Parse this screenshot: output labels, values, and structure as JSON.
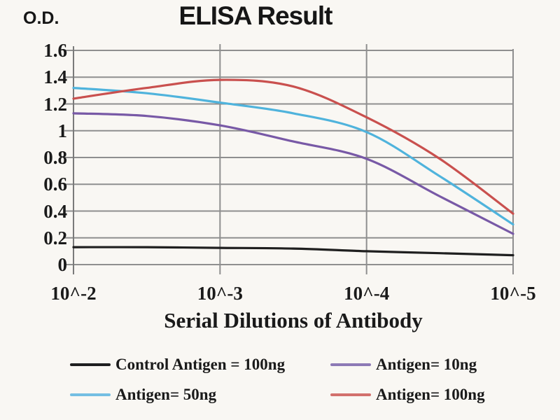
{
  "chart_data": {
    "type": "line",
    "title": "ELISA Result",
    "ylabel": "O.D.",
    "xlabel": "Serial Dilutions of Antibody",
    "grid": true,
    "legend_position": "below-2x2",
    "ylim": [
      0,
      1.6
    ],
    "y_tick_labels": [
      "0",
      "0.2",
      "0.4",
      "0.6",
      "0.8",
      "1",
      "1.2",
      "1.4",
      "1.6"
    ],
    "x_tick_labels": [
      "10^-2",
      "10^-3",
      "10^-4",
      "10^-5"
    ],
    "x_tick_positions": [
      -2,
      -3,
      -4,
      -5
    ],
    "x": [
      -2,
      -2.5,
      -3,
      -3.5,
      -4,
      -4.5,
      -5
    ],
    "series": [
      {
        "name": "Control Antigen = 100ng",
        "color": "#1f1f1f",
        "legend_color": "#1f1f1f",
        "values": [
          0.13,
          0.13,
          0.125,
          0.12,
          0.1,
          0.085,
          0.07
        ]
      },
      {
        "name": "Antigen= 10ng",
        "color": "#7859a6",
        "legend_color": "#8d7ab5",
        "values": [
          1.13,
          1.11,
          1.04,
          0.92,
          0.79,
          0.51,
          0.23
        ]
      },
      {
        "name": "Antigen= 50ng",
        "color": "#4fb3dc",
        "legend_color": "#74bfe3",
        "values": [
          1.32,
          1.28,
          1.21,
          1.13,
          0.99,
          0.66,
          0.3
        ]
      },
      {
        "name": "Antigen= 100ng",
        "color": "#c9504e",
        "legend_color": "#d2706c",
        "values": [
          1.24,
          1.32,
          1.38,
          1.33,
          1.1,
          0.79,
          0.38
        ]
      }
    ],
    "style_colors": {
      "gridline": "#8f8f8f",
      "axis": "#7a7a7a",
      "text": "#1a1a1a",
      "background": "#f9f7f3"
    }
  }
}
